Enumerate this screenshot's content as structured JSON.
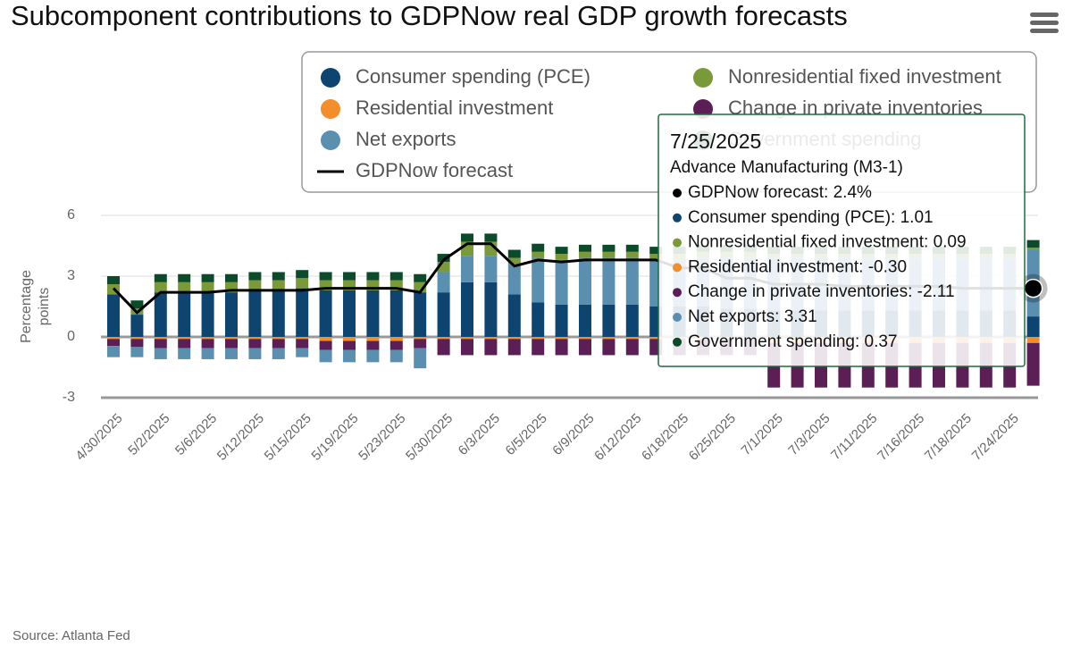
{
  "chart_data": {
    "type": "bar",
    "title": "Subcomponent contributions to GDPNow real GDP growth forecasts",
    "y_label": "Percentage points",
    "source": "Source: Atlanta Fed",
    "categories": [
      "4/30/2025",
      null,
      "5/2/2025",
      null,
      "5/6/2025",
      null,
      "5/12/2025",
      null,
      "5/15/2025",
      null,
      "5/19/2025",
      null,
      "5/23/2025",
      null,
      "5/30/2025",
      null,
      "6/3/2025",
      null,
      "6/5/2025",
      null,
      "6/9/2025",
      null,
      "6/12/2025",
      null,
      "6/18/2025",
      null,
      "6/25/2025",
      null,
      "7/1/2025",
      null,
      "7/3/2025",
      null,
      "7/11/2025",
      null,
      "7/16/2025",
      null,
      "7/18/2025",
      null,
      "7/24/2025",
      null
    ],
    "ylim": [
      -3,
      6
    ],
    "yticks": [
      -3,
      0,
      3,
      6
    ],
    "series": [
      {
        "name": "Residential investment",
        "color": "#f28e2b",
        "values": [
          -0.1,
          -0.1,
          -0.1,
          -0.1,
          -0.1,
          -0.1,
          -0.1,
          -0.1,
          -0.1,
          -0.2,
          -0.2,
          -0.2,
          -0.2,
          -0.1,
          -0.1,
          -0.1,
          -0.1,
          -0.1,
          -0.1,
          -0.1,
          -0.1,
          -0.1,
          -0.1,
          -0.1,
          -0.1,
          -0.1,
          -0.1,
          -0.1,
          -0.3,
          -0.3,
          -0.3,
          -0.3,
          -0.3,
          -0.3,
          -0.3,
          -0.3,
          -0.3,
          -0.3,
          -0.3,
          -0.3
        ]
      },
      {
        "name": "Consumer spending (PCE)",
        "color": "#0e4470",
        "values": [
          2.1,
          1.1,
          2.2,
          2.2,
          2.2,
          2.2,
          2.3,
          2.3,
          2.4,
          2.3,
          2.3,
          2.3,
          2.3,
          2.2,
          2.2,
          2.7,
          2.7,
          2.1,
          1.7,
          1.6,
          1.6,
          1.6,
          1.6,
          1.5,
          1.5,
          1.5,
          1.4,
          1.4,
          1.3,
          1.3,
          1.3,
          1.3,
          1.3,
          1.3,
          1.3,
          1.3,
          1.3,
          1.3,
          1.3,
          1.01
        ]
      },
      {
        "name": "Change in private inventories",
        "color": "#5b1f55",
        "values": [
          -0.35,
          -0.4,
          -0.45,
          -0.45,
          -0.45,
          -0.45,
          -0.45,
          -0.45,
          -0.45,
          -0.45,
          -0.45,
          -0.45,
          -0.45,
          -0.45,
          -0.8,
          -0.8,
          -0.8,
          -0.8,
          -0.8,
          -0.8,
          -0.8,
          -0.8,
          -0.8,
          -0.8,
          -0.8,
          -0.8,
          -0.8,
          -0.8,
          -2.2,
          -2.2,
          -2.2,
          -2.2,
          -2.2,
          -2.2,
          -2.2,
          -2.2,
          -2.2,
          -2.2,
          -2.2,
          -2.11
        ]
      },
      {
        "name": "Net exports",
        "color": "#5b8fb0",
        "values": [
          -0.55,
          -0.5,
          -0.55,
          -0.55,
          -0.55,
          -0.55,
          -0.55,
          -0.55,
          -0.45,
          -0.6,
          -0.6,
          -0.6,
          -0.6,
          -1.0,
          1.0,
          1.3,
          1.3,
          1.5,
          2.2,
          2.2,
          2.3,
          2.3,
          2.3,
          2.3,
          2.3,
          2.4,
          2.5,
          2.5,
          2.6,
          2.6,
          2.6,
          2.6,
          2.6,
          2.6,
          2.6,
          2.6,
          2.6,
          2.6,
          2.6,
          3.31
        ]
      },
      {
        "name": "Nonresidential fixed investment",
        "color": "#7a9a3a",
        "values": [
          0.5,
          0.3,
          0.5,
          0.5,
          0.5,
          0.5,
          0.5,
          0.5,
          0.5,
          0.5,
          0.5,
          0.5,
          0.5,
          0.5,
          0.5,
          0.7,
          0.7,
          0.3,
          0.3,
          0.3,
          0.3,
          0.3,
          0.3,
          0.3,
          0.3,
          0.3,
          0.3,
          0.3,
          0.2,
          0.2,
          0.2,
          0.2,
          0.2,
          0.2,
          0.2,
          0.2,
          0.2,
          0.2,
          0.2,
          0.09
        ]
      },
      {
        "name": "Government spending",
        "color": "#0b4a2b",
        "values": [
          0.4,
          0.4,
          0.4,
          0.4,
          0.4,
          0.4,
          0.4,
          0.4,
          0.4,
          0.4,
          0.4,
          0.4,
          0.4,
          0.4,
          0.4,
          0.4,
          0.4,
          0.4,
          0.4,
          0.35,
          0.35,
          0.35,
          0.35,
          0.35,
          0.35,
          0.35,
          0.35,
          0.35,
          0.35,
          0.35,
          0.35,
          0.35,
          0.35,
          0.35,
          0.35,
          0.35,
          0.35,
          0.35,
          0.35,
          0.37
        ]
      },
      {
        "name": "GDPNow forecast",
        "color": "#000000",
        "type": "line",
        "values": [
          2.4,
          1.2,
          2.2,
          2.2,
          2.2,
          2.3,
          2.3,
          2.3,
          2.3,
          2.4,
          2.4,
          2.4,
          2.4,
          2.2,
          3.8,
          4.6,
          4.6,
          3.5,
          3.8,
          3.7,
          3.8,
          3.8,
          3.8,
          3.8,
          3.4,
          3.4,
          2.9,
          2.9,
          2.6,
          2.6,
          2.6,
          2.5,
          2.5,
          2.5,
          2.5,
          2.5,
          2.4,
          2.4,
          2.4,
          2.4
        ]
      }
    ],
    "tooltip": {
      "date": "7/25/2025",
      "subtitle": "Advance Manufacturing (M3-1)",
      "items": [
        {
          "text": "GDPNow forecast: 2.4%",
          "color": "#000000"
        },
        {
          "text": "Consumer spending (PCE): 1.01",
          "color": "#0e4470"
        },
        {
          "text": "Nonresidential fixed investment: 0.09",
          "color": "#7a9a3a"
        },
        {
          "text": "Residential investment: -0.30",
          "color": "#f28e2b"
        },
        {
          "text": "Change in private inventories: -2.11",
          "color": "#5b1f55"
        },
        {
          "text": "Net exports: 3.31",
          "color": "#5b8fb0"
        },
        {
          "text": "Government spending: 0.37",
          "color": "#0b4a2b"
        }
      ]
    }
  }
}
